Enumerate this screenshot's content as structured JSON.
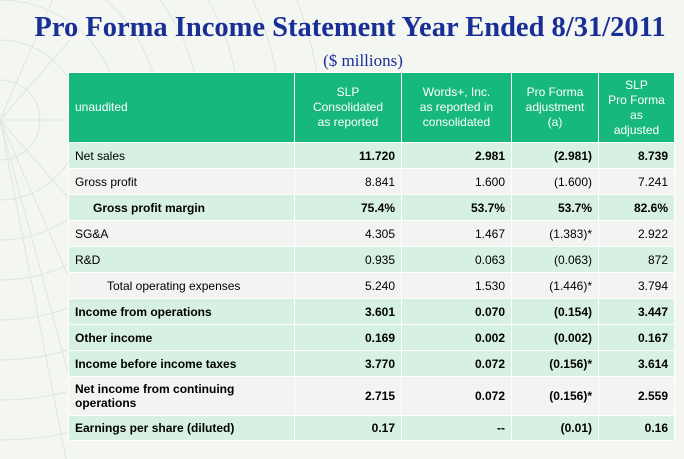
{
  "title": "Pro Forma Income Statement Year Ended 8/31/2011",
  "subtitle": "($ millions)",
  "table": {
    "headers": [
      "unaudited",
      "SLP\nConsolidated\nas reported",
      "Words+, Inc.\nas reported in\nconsolidated",
      "Pro Forma\nadjustment\n(a)",
      "SLP\nPro Forma\nas\nadjusted"
    ],
    "rows": [
      {
        "cells": [
          "Net sales",
          "11.720",
          "2.981",
          "(2.981)",
          "8.739"
        ]
      },
      {
        "cells": [
          "Gross profit",
          "8.841",
          "1.600",
          "(1.600)",
          "7.241"
        ]
      },
      {
        "cells": [
          "Gross profit margin",
          "75.4%",
          "53.7%",
          "53.7%",
          "82.6%"
        ]
      },
      {
        "cells": [
          "SG&A",
          "4.305",
          "1.467",
          "(1.383)*",
          "2.922"
        ]
      },
      {
        "cells": [
          "R&D",
          "0.935",
          "0.063",
          "(0.063)",
          "872"
        ]
      },
      {
        "cells": [
          "Total operating expenses",
          "5.240",
          "1.530",
          "(1.446)*",
          "3.794"
        ]
      },
      {
        "cells": [
          "Income from operations",
          "3.601",
          "0.070",
          "(0.154)",
          "3.447"
        ]
      },
      {
        "cells": [
          "Other income",
          "0.169",
          "0.002",
          "(0.002)",
          "0.167"
        ]
      },
      {
        "cells": [
          "Income before income taxes",
          "3.770",
          "0.072",
          "(0.156)*",
          "3.614"
        ]
      },
      {
        "cells": [
          "Net income from continuing operations",
          "2.715",
          "0.072",
          "(0.156)*",
          "2.559"
        ]
      },
      {
        "cells": [
          "Earnings per share (diluted)",
          "0.17",
          "--",
          "(0.01)",
          "0.16"
        ]
      }
    ]
  },
  "colors": {
    "title": "#1a2f96",
    "header_bg": "#17b87e",
    "row_green": "#d6f0e2",
    "row_light": "#f3f4f1"
  }
}
